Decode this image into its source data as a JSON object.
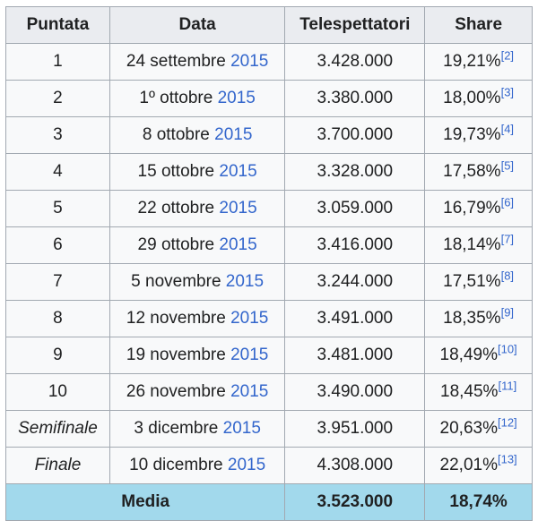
{
  "headers": [
    "Puntata",
    "Data",
    "Telespettatori",
    "Share"
  ],
  "rows": [
    {
      "puntata": "1",
      "italic": false,
      "date": "24 settembre",
      "year": "2015",
      "viewers": "3.428.000",
      "share": "19,21%",
      "ref": "[2]"
    },
    {
      "puntata": "2",
      "italic": false,
      "date": "1º ottobre",
      "year": "2015",
      "viewers": "3.380.000",
      "share": "18,00%",
      "ref": "[3]"
    },
    {
      "puntata": "3",
      "italic": false,
      "date": "8 ottobre",
      "year": "2015",
      "viewers": "3.700.000",
      "share": "19,73%",
      "ref": "[4]"
    },
    {
      "puntata": "4",
      "italic": false,
      "date": "15 ottobre",
      "year": "2015",
      "viewers": "3.328.000",
      "share": "17,58%",
      "ref": "[5]"
    },
    {
      "puntata": "5",
      "italic": false,
      "date": "22 ottobre",
      "year": "2015",
      "viewers": "3.059.000",
      "share": "16,79%",
      "ref": "[6]"
    },
    {
      "puntata": "6",
      "italic": false,
      "date": "29 ottobre",
      "year": "2015",
      "viewers": "3.416.000",
      "share": "18,14%",
      "ref": "[7]"
    },
    {
      "puntata": "7",
      "italic": false,
      "date": "5 novembre",
      "year": "2015",
      "viewers": "3.244.000",
      "share": "17,51%",
      "ref": "[8]"
    },
    {
      "puntata": "8",
      "italic": false,
      "date": "12 novembre",
      "year": "2015",
      "viewers": "3.491.000",
      "share": "18,35%",
      "ref": "[9]"
    },
    {
      "puntata": "9",
      "italic": false,
      "date": "19 novembre",
      "year": "2015",
      "viewers": "3.481.000",
      "share": "18,49%",
      "ref": "[10]"
    },
    {
      "puntata": "10",
      "italic": false,
      "date": "26 novembre",
      "year": "2015",
      "viewers": "3.490.000",
      "share": "18,45%",
      "ref": "[11]"
    },
    {
      "puntata": "Semifinale",
      "italic": true,
      "date": "3 dicembre",
      "year": "2015",
      "viewers": "3.951.000",
      "share": "20,63%",
      "ref": "[12]"
    },
    {
      "puntata": "Finale",
      "italic": true,
      "date": "10 dicembre",
      "year": "2015",
      "viewers": "4.308.000",
      "share": "22,01%",
      "ref": "[13]"
    }
  ],
  "footer": {
    "label": "Media",
    "viewers": "3.523.000",
    "share": "18,74%"
  },
  "colors": {
    "link": "#3366cc",
    "header_bg": "#eaecf0",
    "footer_bg": "#a2d9ec",
    "cell_bg": "#f8f9fa",
    "border": "#a2a9b1"
  }
}
